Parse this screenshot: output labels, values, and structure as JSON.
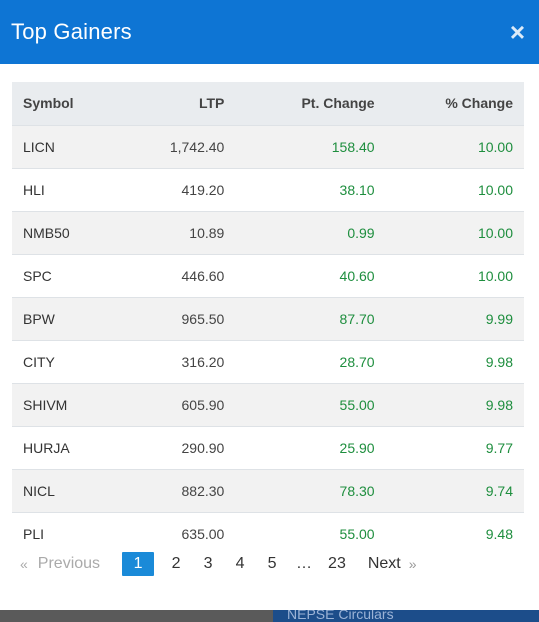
{
  "modal": {
    "title": "Top Gainers",
    "close_label": "×"
  },
  "table": {
    "headers": {
      "symbol": "Symbol",
      "ltp": "LTP",
      "pt_change": "Pt. Change",
      "pct_change": "% Change"
    },
    "rows": [
      {
        "symbol": "LICN",
        "ltp": "1,742.40",
        "pt": "158.40",
        "pct": "10.00"
      },
      {
        "symbol": "HLI",
        "ltp": "419.20",
        "pt": "38.10",
        "pct": "10.00"
      },
      {
        "symbol": "NMB50",
        "ltp": "10.89",
        "pt": "0.99",
        "pct": "10.00"
      },
      {
        "symbol": "SPC",
        "ltp": "446.60",
        "pt": "40.60",
        "pct": "10.00"
      },
      {
        "symbol": "BPW",
        "ltp": "965.50",
        "pt": "87.70",
        "pct": "9.99"
      },
      {
        "symbol": "CITY",
        "ltp": "316.20",
        "pt": "28.70",
        "pct": "9.98"
      },
      {
        "symbol": "SHIVM",
        "ltp": "605.90",
        "pt": "55.00",
        "pct": "9.98"
      },
      {
        "symbol": "HURJA",
        "ltp": "290.90",
        "pt": "25.90",
        "pct": "9.77"
      },
      {
        "symbol": "NICL",
        "ltp": "882.30",
        "pt": "78.30",
        "pct": "9.74"
      },
      {
        "symbol": "PLI",
        "ltp": "635.00",
        "pt": "55.00",
        "pct": "9.48"
      }
    ]
  },
  "pagination": {
    "prev_arrow": "«",
    "previous": "Previous",
    "pages": [
      "1",
      "2",
      "3",
      "4",
      "5",
      "…",
      "23"
    ],
    "active": "1",
    "next": "Next",
    "next_arrow": "»"
  },
  "background": {
    "strip_text": "NEPSE Circulars"
  },
  "colors": {
    "header": "#0e75d4",
    "positive": "#1e8e3e",
    "active_page": "#1a8ad8"
  }
}
